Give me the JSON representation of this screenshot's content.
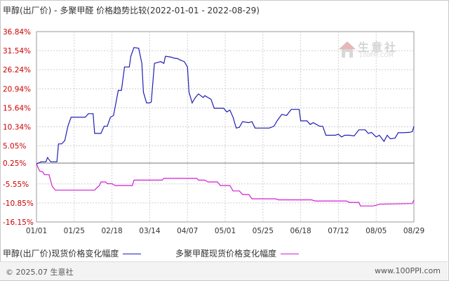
{
  "title": "甲醇(出厂价) - 多聚甲醛 价格趋势比较(2022-01-01 - 2022-08-29)",
  "watermark": {
    "cn": "生意社",
    "en": "100PPI.COM"
  },
  "footer": {
    "left": "© 2025.07 生意社",
    "right": "www.100PPI.com"
  },
  "colors": {
    "series1": "#1f1fb4",
    "series2": "#d21fd2",
    "grid": "#cfcfcf",
    "zero": "#777777"
  },
  "chart_data": {
    "type": "line",
    "title": "甲醇(出厂价) - 多聚甲醛 价格趋势比较(2022-01-01 - 2022-08-29)",
    "xlabel": "",
    "ylabel": "",
    "grid": true,
    "legend_position": "bottom-left",
    "x_ticks": [
      "01/01",
      "01/25",
      "02/18",
      "03/14",
      "04/07",
      "05/01",
      "05/25",
      "06/18",
      "07/12",
      "08/05",
      "08/29"
    ],
    "y_ticks": [
      "36.84%",
      "31.54%",
      "26.24%",
      "20.94%",
      "15.64%",
      "10.34%",
      "5.05%",
      "0.25%",
      "-5.55%",
      "-10.85%",
      "-16.15%"
    ],
    "ylim": [
      -16.15,
      36.84
    ],
    "x_range": [
      "2022-01-01",
      "2022-08-29"
    ],
    "series": [
      {
        "name": "甲醇(出厂价)现货价格变化幅度",
        "points": [
          [
            "2022-01-01",
            0
          ],
          [
            "2022-01-04",
            0.6
          ],
          [
            "2022-01-07",
            0.6
          ],
          [
            "2022-01-08",
            1.8
          ],
          [
            "2022-01-10",
            0.6
          ],
          [
            "2022-01-12",
            0.6
          ],
          [
            "2022-01-14",
            0.6
          ],
          [
            "2022-01-15",
            5.6
          ],
          [
            "2022-01-17",
            5.6
          ],
          [
            "2022-01-19",
            6.5
          ],
          [
            "2022-01-21",
            10.5
          ],
          [
            "2022-01-23",
            13.0
          ],
          [
            "2022-01-27",
            13.0
          ],
          [
            "2022-02-01",
            13.0
          ],
          [
            "2022-02-03",
            14.0
          ],
          [
            "2022-02-06",
            14.0
          ],
          [
            "2022-02-07",
            8.5
          ],
          [
            "2022-02-11",
            8.5
          ],
          [
            "2022-02-13",
            10.5
          ],
          [
            "2022-02-15",
            10.5
          ],
          [
            "2022-02-17",
            13.0
          ],
          [
            "2022-02-19",
            13.5
          ],
          [
            "2022-02-22",
            20.5
          ],
          [
            "2022-02-24",
            20.5
          ],
          [
            "2022-02-26",
            27.0
          ],
          [
            "2022-03-01",
            27.0
          ],
          [
            "2022-03-02",
            30.0
          ],
          [
            "2022-03-04",
            32.4
          ],
          [
            "2022-03-07",
            32.2
          ],
          [
            "2022-03-09",
            28.0
          ],
          [
            "2022-03-10",
            20.0
          ],
          [
            "2022-03-12",
            17.0
          ],
          [
            "2022-03-14",
            17.0
          ],
          [
            "2022-03-15",
            17.2
          ],
          [
            "2022-03-17",
            28.0
          ],
          [
            "2022-03-21",
            28.5
          ],
          [
            "2022-03-23",
            28.0
          ],
          [
            "2022-03-24",
            30.0
          ],
          [
            "2022-03-28",
            29.7
          ],
          [
            "2022-03-29",
            29.5
          ],
          [
            "2022-04-01",
            29.3
          ],
          [
            "2022-04-02",
            29.0
          ],
          [
            "2022-04-05",
            28.5
          ],
          [
            "2022-04-07",
            27.0
          ],
          [
            "2022-04-08",
            20.0
          ],
          [
            "2022-04-10",
            17.0
          ],
          [
            "2022-04-12",
            18.5
          ],
          [
            "2022-04-14",
            19.5
          ],
          [
            "2022-04-17",
            18.5
          ],
          [
            "2022-04-18",
            19.0
          ],
          [
            "2022-04-22",
            18.0
          ],
          [
            "2022-04-24",
            15.5
          ],
          [
            "2022-04-27",
            15.5
          ],
          [
            "2022-04-30",
            15.5
          ],
          [
            "2022-05-02",
            14.5
          ],
          [
            "2022-05-04",
            15.0
          ],
          [
            "2022-05-06",
            13.0
          ],
          [
            "2022-05-08",
            10.0
          ],
          [
            "2022-05-10",
            10.2
          ],
          [
            "2022-05-12",
            11.8
          ],
          [
            "2022-05-16",
            11.5
          ],
          [
            "2022-05-18",
            11.8
          ],
          [
            "2022-05-20",
            10.0
          ],
          [
            "2022-05-27",
            10.0
          ],
          [
            "2022-05-29",
            10.0
          ],
          [
            "2022-06-01",
            10.5
          ],
          [
            "2022-06-03",
            12.0
          ],
          [
            "2022-06-06",
            13.8
          ],
          [
            "2022-06-09",
            13.5
          ],
          [
            "2022-06-12",
            15.2
          ],
          [
            "2022-06-17",
            15.2
          ],
          [
            "2022-06-18",
            12.0
          ],
          [
            "2022-06-22",
            12.0
          ],
          [
            "2022-06-24",
            11.0
          ],
          [
            "2022-06-26",
            11.5
          ],
          [
            "2022-06-30",
            10.5
          ],
          [
            "2022-07-02",
            10.5
          ],
          [
            "2022-07-04",
            8.0
          ],
          [
            "2022-07-10",
            8.0
          ],
          [
            "2022-07-12",
            8.3
          ],
          [
            "2022-07-14",
            7.5
          ],
          [
            "2022-07-16",
            8.0
          ],
          [
            "2022-07-19",
            8.0
          ],
          [
            "2022-07-22",
            7.8
          ],
          [
            "2022-07-25",
            9.5
          ],
          [
            "2022-07-29",
            9.5
          ],
          [
            "2022-07-31",
            8.5
          ],
          [
            "2022-08-02",
            8.8
          ],
          [
            "2022-08-05",
            7.5
          ],
          [
            "2022-08-07",
            8.0
          ],
          [
            "2022-08-10",
            6.3
          ],
          [
            "2022-08-12",
            8.0
          ],
          [
            "2022-08-14",
            7.0
          ],
          [
            "2022-08-17",
            7.2
          ],
          [
            "2022-08-19",
            8.7
          ],
          [
            "2022-08-22",
            8.7
          ],
          [
            "2022-08-26",
            8.8
          ],
          [
            "2022-08-28",
            9.0
          ],
          [
            "2022-08-29",
            10.5
          ]
        ]
      },
      {
        "name": "多聚甲醛现货价格变化幅度",
        "points": [
          [
            "2022-01-01",
            0
          ],
          [
            "2022-01-03",
            -2.0
          ],
          [
            "2022-01-05",
            -2.2
          ],
          [
            "2022-01-06",
            -3.0
          ],
          [
            "2022-01-09",
            -3.0
          ],
          [
            "2022-01-11",
            -6.2
          ],
          [
            "2022-01-13",
            -7.3
          ],
          [
            "2022-01-20",
            -7.3
          ],
          [
            "2022-02-07",
            -7.3
          ],
          [
            "2022-02-08",
            -6.8
          ],
          [
            "2022-02-10",
            -6.0
          ],
          [
            "2022-02-11",
            -5.0
          ],
          [
            "2022-02-14",
            -5.0
          ],
          [
            "2022-02-15",
            -5.5
          ],
          [
            "2022-02-18",
            -5.5
          ],
          [
            "2022-02-20",
            -6.0
          ],
          [
            "2022-03-03",
            -6.0
          ],
          [
            "2022-03-04",
            -4.5
          ],
          [
            "2022-03-22",
            -4.5
          ],
          [
            "2022-03-23",
            -4.0
          ],
          [
            "2022-04-13",
            -4.0
          ],
          [
            "2022-04-14",
            -4.5
          ],
          [
            "2022-04-18",
            -4.5
          ],
          [
            "2022-04-20",
            -5.0
          ],
          [
            "2022-04-26",
            -5.0
          ],
          [
            "2022-04-28",
            -6.0
          ],
          [
            "2022-05-04",
            -6.0
          ],
          [
            "2022-05-06",
            -7.5
          ],
          [
            "2022-05-10",
            -7.5
          ],
          [
            "2022-05-12",
            -8.5
          ],
          [
            "2022-05-16",
            -8.5
          ],
          [
            "2022-05-18",
            -9.7
          ],
          [
            "2022-06-02",
            -9.7
          ],
          [
            "2022-06-04",
            -10.0
          ],
          [
            "2022-06-25",
            -10.0
          ],
          [
            "2022-06-27",
            -10.3
          ],
          [
            "2022-07-17",
            -10.3
          ],
          [
            "2022-07-19",
            -10.7
          ],
          [
            "2022-07-25",
            -10.7
          ],
          [
            "2022-07-26",
            -11.7
          ],
          [
            "2022-08-03",
            -11.7
          ],
          [
            "2022-08-05",
            -11.5
          ],
          [
            "2022-08-07",
            -11.2
          ],
          [
            "2022-08-28",
            -11.0
          ],
          [
            "2022-08-29",
            -10.0
          ]
        ]
      }
    ]
  }
}
